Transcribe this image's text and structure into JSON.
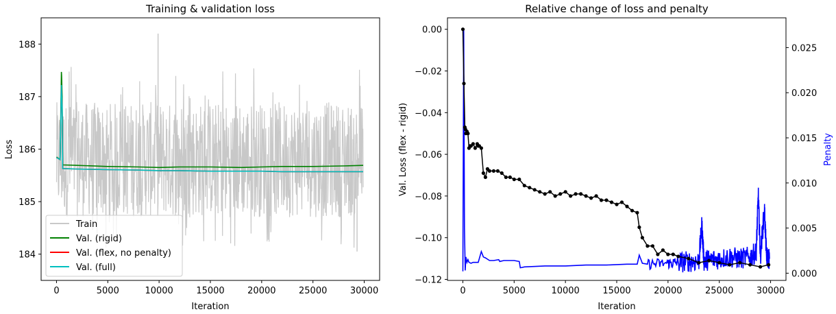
{
  "chart_data": [
    {
      "type": "line",
      "title": "Training & validation loss",
      "xlabel": "Iteration",
      "ylabel": "Loss",
      "xlim": [
        -1500,
        31500
      ],
      "ylim": [
        183.5,
        188.5
      ],
      "xticks": [
        0,
        5000,
        10000,
        15000,
        20000,
        25000,
        30000
      ],
      "yticks": [
        184,
        185,
        186,
        187,
        188
      ],
      "legend_position": "lower-left",
      "series": [
        {
          "name": "Train",
          "color": "#c8c8c8",
          "kind": "noisy-band",
          "x_range": [
            0,
            29900
          ],
          "center": 185.8,
          "typical_min": 184.7,
          "typical_max": 186.9,
          "peak_max": 188.2,
          "peak_min": 184.05
        },
        {
          "name": "Val. (rigid)",
          "color": "#008000",
          "x": [
            0,
            350,
            480,
            500,
            550,
            600,
            2000,
            5000,
            8000,
            10000,
            12000,
            15000,
            18000,
            20000,
            22000,
            25000,
            28000,
            29900
          ],
          "y": [
            185.85,
            185.8,
            187.47,
            187.4,
            187.0,
            185.7,
            185.69,
            185.67,
            185.66,
            185.65,
            185.66,
            185.66,
            185.65,
            185.66,
            185.67,
            185.67,
            185.68,
            185.69
          ]
        },
        {
          "name": "Val. (flex, no penalty)",
          "color": "#ff0000",
          "x": [
            0,
            350,
            480,
            500,
            550,
            600,
            2000,
            5000,
            8000,
            10000,
            12000,
            15000,
            18000,
            20000,
            22000,
            25000,
            28000,
            29900
          ],
          "y": [
            185.84,
            185.8,
            187.2,
            187.1,
            186.8,
            185.63,
            185.62,
            185.61,
            185.6,
            185.59,
            185.59,
            185.58,
            185.58,
            185.58,
            185.57,
            185.57,
            185.57,
            185.57
          ]
        },
        {
          "name": "Val. (full)",
          "color": "#00bfbf",
          "x": [
            0,
            350,
            480,
            500,
            550,
            600,
            2000,
            5000,
            8000,
            10000,
            12000,
            15000,
            18000,
            20000,
            22000,
            25000,
            28000,
            29900
          ],
          "y": [
            185.84,
            185.8,
            187.22,
            187.1,
            186.8,
            185.63,
            185.62,
            185.61,
            185.6,
            185.59,
            185.59,
            185.58,
            185.58,
            185.58,
            185.57,
            185.57,
            185.57,
            185.57
          ]
        }
      ]
    },
    {
      "type": "line",
      "title": "Relative change of loss and penalty",
      "xlabel": "Iteration",
      "ylabel": "Val. Loss (flex - rigid)",
      "ylabel_right": "Penalty",
      "xlim": [
        -1500,
        31500
      ],
      "ylim": [
        -0.1205,
        0.0055
      ],
      "ylim_right": [
        -0.0008,
        0.0283
      ],
      "xticks": [
        0,
        5000,
        10000,
        15000,
        20000,
        25000,
        30000
      ],
      "yticks": [
        -0.12,
        -0.1,
        -0.08,
        -0.06,
        -0.04,
        -0.02,
        0.0
      ],
      "yticks_right": [
        0.0,
        0.005,
        0.01,
        0.015,
        0.02,
        0.025
      ],
      "ytick_labels": [
        "−0.12",
        "−0.10",
        "−0.08",
        "−0.06",
        "−0.04",
        "−0.02",
        "0.00"
      ],
      "ytick_labels_right": [
        "0.000",
        "0.005",
        "0.010",
        "0.015",
        "0.020",
        "0.025"
      ],
      "series": [
        {
          "name": "Val. Loss (flex - rigid)",
          "color": "#000000",
          "marker": "circle",
          "axis": "left",
          "x": [
            0,
            100,
            200,
            250,
            300,
            400,
            500,
            600,
            700,
            800,
            1000,
            1200,
            1400,
            1500,
            1600,
            1800,
            2000,
            2200,
            2400,
            2600,
            3000,
            3400,
            3800,
            4200,
            4600,
            5000,
            5500,
            6000,
            6500,
            7000,
            7500,
            8000,
            8500,
            9000,
            9500,
            10000,
            10500,
            11000,
            11500,
            12000,
            12500,
            13000,
            13500,
            14000,
            14500,
            15000,
            15500,
            16000,
            16500,
            17000,
            17200,
            17500,
            18000,
            18500,
            19000,
            19500,
            20000,
            20500,
            21000,
            22000,
            23000,
            24000,
            25000,
            26000,
            27000,
            28000,
            29000,
            29800
          ],
          "y": [
            0.0,
            -0.026,
            -0.047,
            -0.048,
            -0.05,
            -0.049,
            -0.05,
            -0.057,
            -0.056,
            -0.056,
            -0.055,
            -0.057,
            -0.055,
            -0.056,
            -0.056,
            -0.057,
            -0.069,
            -0.071,
            -0.067,
            -0.068,
            -0.068,
            -0.068,
            -0.069,
            -0.071,
            -0.071,
            -0.072,
            -0.072,
            -0.075,
            -0.076,
            -0.077,
            -0.078,
            -0.079,
            -0.078,
            -0.08,
            -0.079,
            -0.078,
            -0.08,
            -0.079,
            -0.079,
            -0.08,
            -0.081,
            -0.08,
            -0.082,
            -0.082,
            -0.083,
            -0.084,
            -0.083,
            -0.085,
            -0.087,
            -0.088,
            -0.095,
            -0.1,
            -0.104,
            -0.104,
            -0.108,
            -0.106,
            -0.108,
            -0.108,
            -0.109,
            -0.11,
            -0.112,
            -0.111,
            -0.112,
            -0.113,
            -0.112,
            -0.113,
            -0.114,
            -0.113
          ]
        },
        {
          "name": "Penalty",
          "color": "#0000ff",
          "axis": "right",
          "x": [
            0,
            80,
            160,
            230,
            300,
            400,
            500,
            600,
            800,
            1000,
            1500,
            1800,
            2000,
            2200,
            2600,
            3000,
            3500,
            3600,
            4000,
            4500,
            5000,
            5500,
            5600,
            6000,
            8000,
            10000,
            12000,
            14000,
            16000,
            17000,
            17200,
            17500,
            18000,
            20000,
            21000,
            22000,
            23000,
            23300,
            23500,
            24000,
            25000,
            26000,
            27000,
            28000,
            28600,
            28800,
            29000,
            29400,
            29600,
            29900
          ],
          "y": [
            0.0002,
            0.027,
            0.005,
            0.0003,
            0.0018,
            0.0012,
            0.0015,
            0.0012,
            0.0011,
            0.0012,
            0.0012,
            0.0024,
            0.0018,
            0.0017,
            0.0014,
            0.0014,
            0.0015,
            0.0013,
            0.0014,
            0.0014,
            0.0014,
            0.0013,
            0.0006,
            0.0007,
            0.0008,
            0.0008,
            0.0009,
            0.0009,
            0.001,
            0.001,
            0.002,
            0.0011,
            0.001,
            0.0011,
            0.0012,
            0.0013,
            0.0013,
            0.0053,
            0.0014,
            0.0015,
            0.0016,
            0.0018,
            0.0016,
            0.0018,
            0.0023,
            0.0087,
            0.0018,
            0.0071,
            0.0018,
            0.0016
          ]
        }
      ]
    }
  ]
}
